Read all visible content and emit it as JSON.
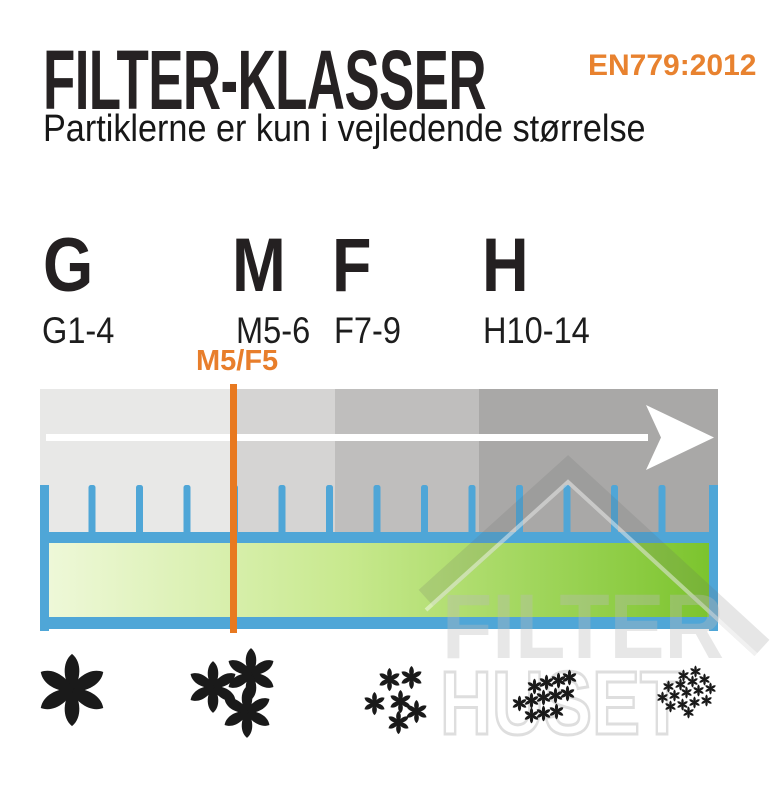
{
  "header": {
    "title": "FILTER-KLASSER",
    "standard": "EN779:2012",
    "subtitle": "Partiklerne er kun i vejledende størrelse"
  },
  "classes": [
    {
      "letter": "G",
      "range": "G1-4"
    },
    {
      "letter": "M",
      "range": "M5-6"
    },
    {
      "letter": "F",
      "range": "F7-9"
    },
    {
      "letter": "H",
      "range": "H10-14"
    }
  ],
  "marker": {
    "label": "M5/F5"
  },
  "watermark": {
    "line1": "FILTER",
    "line2": "HUSET"
  },
  "colors": {
    "accent_orange": "#E87920",
    "orange_text": "#E87E2B",
    "blue": "#4FA6D7",
    "green_light": "#EEF8D8",
    "green_bright": "#7CC42E",
    "segment_grays": [
      "#E8E8E7",
      "#D5D4D3",
      "#BFBEBD",
      "#A9A8A7"
    ],
    "particle_black": "#1A1A1A",
    "arrow_white": "#FFFFFF"
  },
  "scale": {
    "segments": 4,
    "comb_teeth_inner": 13,
    "arrow_direction": "right"
  },
  "particles": {
    "clusters": [
      {
        "name": "coarse-single",
        "size": 78,
        "points": [
          [
            72,
            690
          ]
        ]
      },
      {
        "name": "medium-trio",
        "size": 56,
        "points": [
          [
            213,
            687
          ],
          [
            251,
            674
          ],
          [
            247,
            712
          ]
        ]
      },
      {
        "name": "small-six",
        "size": 25,
        "points": [
          [
            389,
            679
          ],
          [
            411,
            677
          ],
          [
            374,
            703
          ],
          [
            400,
            701
          ],
          [
            416,
            711
          ],
          [
            398,
            722
          ]
        ]
      },
      {
        "name": "fine-cluster",
        "size": 17,
        "points": [
          [
            534,
            686
          ],
          [
            546,
            682
          ],
          [
            558,
            680
          ],
          [
            569,
            677
          ],
          [
            519,
            703
          ],
          [
            531,
            700
          ],
          [
            543,
            697
          ],
          [
            555,
            695
          ],
          [
            567,
            693
          ],
          [
            531,
            715
          ],
          [
            543,
            713
          ],
          [
            556,
            711
          ]
        ]
      },
      {
        "name": "ultrafine-cluster",
        "size": 13,
        "points": [
          [
            683,
            675
          ],
          [
            695,
            671
          ],
          [
            668,
            686
          ],
          [
            680,
            684
          ],
          [
            692,
            681
          ],
          [
            704,
            679
          ],
          [
            662,
            697
          ],
          [
            674,
            695
          ],
          [
            686,
            692
          ],
          [
            698,
            690
          ],
          [
            710,
            688
          ],
          [
            670,
            706
          ],
          [
            682,
            704
          ],
          [
            694,
            702
          ],
          [
            706,
            700
          ],
          [
            688,
            712
          ]
        ]
      }
    ]
  }
}
